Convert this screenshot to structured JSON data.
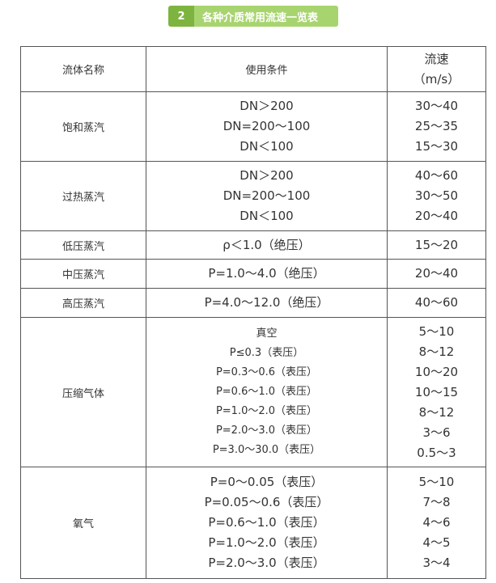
{
  "badge": {
    "number": "2",
    "title": "各种介质常用流速一览表"
  },
  "header": {
    "col1": "流体名称",
    "col2": "使用条件",
    "col3_line1": "流速",
    "col3_line2": "（m/s）"
  },
  "rows": [
    {
      "name": "饱和蒸汽",
      "conditions": [
        "DN＞200",
        "DN=200～100",
        "DN＜100"
      ],
      "speeds": [
        "30～40",
        "25～35",
        "15～30"
      ]
    },
    {
      "name": "过热蒸汽",
      "conditions": [
        "DN＞200",
        "DN=200～100",
        "DN＜100"
      ],
      "speeds": [
        "40～60",
        "30～50",
        "20～40"
      ]
    },
    {
      "name": "低压蒸汽",
      "conditions": [
        "ρ＜1.0（绝压）"
      ],
      "speeds": [
        "15～20"
      ]
    },
    {
      "name": "中压蒸汽",
      "conditions": [
        "P=1.0～4.0（绝压）"
      ],
      "speeds": [
        "20～40"
      ]
    },
    {
      "name": "高压蒸汽",
      "conditions": [
        "P=4.0～12.0（绝压）"
      ],
      "speeds": [
        "40～60"
      ]
    },
    {
      "name": "压缩气体",
      "conditions": [
        "真空",
        "P≤0.3（表压）",
        "P=0.3～0.6（表压）",
        "P=0.6～1.0（表压）",
        "P=1.0～2.0（表压）",
        "P=2.0～3.0（表压）",
        "P=3.0～30.0（表压）"
      ],
      "speeds": [
        "5～10",
        "8～12",
        "10～20",
        "10～15",
        "8～12",
        "3～6",
        "0.5～3"
      ]
    },
    {
      "name": "氧气",
      "conditions": [
        "P=0～0.05（表压）",
        "P=0.05～0.6（表压）",
        "P=0.6～1.0（表压）",
        "P=1.0～2.0（表压）",
        "P=2.0～3.0（表压）"
      ],
      "speeds": [
        "5～10",
        "7～8",
        "4～6",
        "4～5",
        "3～4"
      ]
    }
  ]
}
